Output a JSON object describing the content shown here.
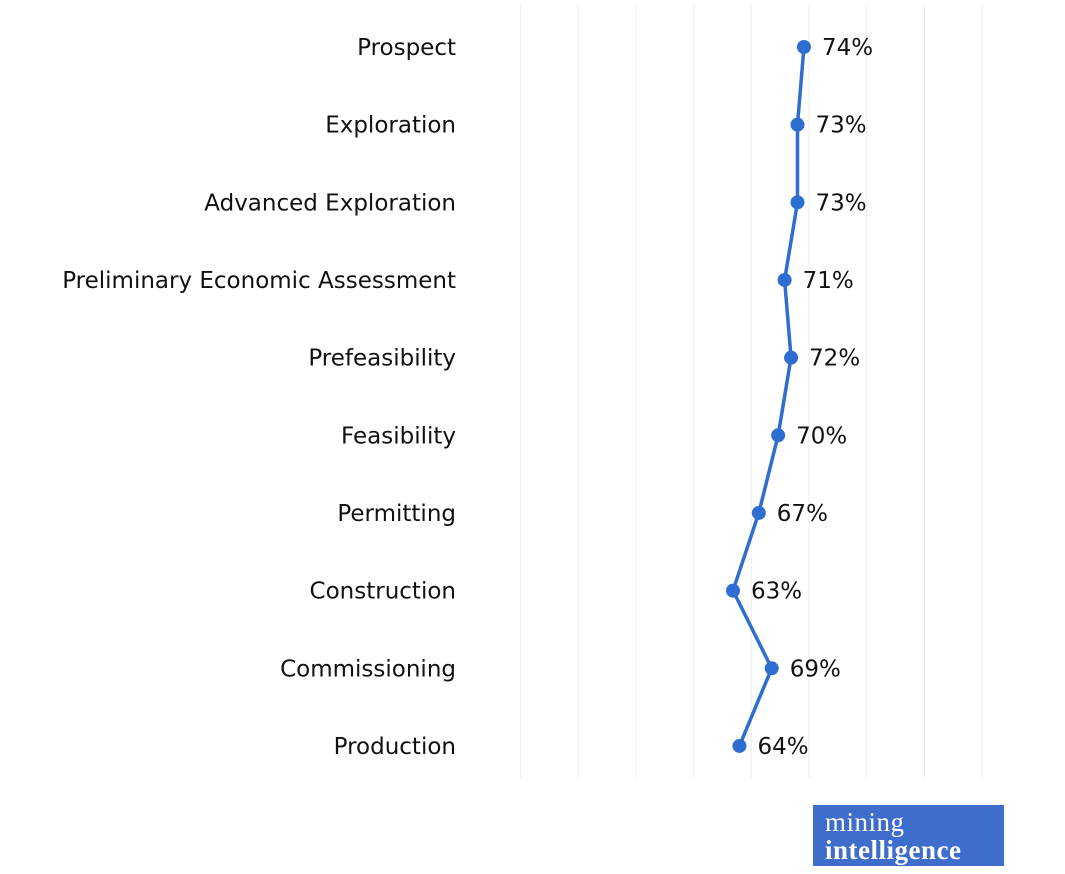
{
  "chart_data": {
    "type": "line",
    "orientation": "vertical-category-axis",
    "title": "",
    "categories": [
      "Prospect",
      "Exploration",
      "Advanced Exploration",
      "Preliminary Economic Assessment",
      "Prefeasibility",
      "Feasibility",
      "Permitting",
      "Construction",
      "Commissioning",
      "Production"
    ],
    "values": [
      74,
      73,
      73,
      71,
      72,
      70,
      67,
      63,
      69,
      64
    ],
    "value_suffix": "%",
    "series_color": "#2e6ed0",
    "grid": true,
    "gridline_color": "#ececec",
    "label_color": "#111111",
    "value_range_shown": [
      63,
      74
    ]
  },
  "logo": {
    "line1": "mining",
    "line2": "intelligence",
    "background": "#3e6dcc",
    "text_color": "#ffffff"
  }
}
